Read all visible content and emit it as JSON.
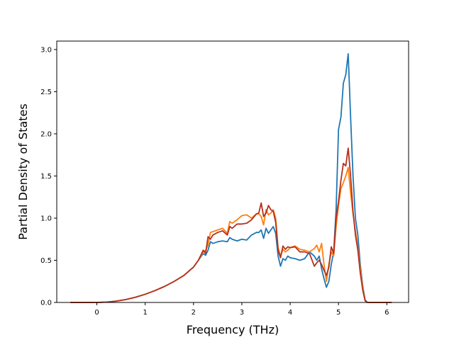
{
  "chart_data": {
    "type": "line",
    "title": "",
    "xlabel": "Frequency (THz)",
    "ylabel": "Partial Density of States",
    "xlim": [
      -0.83,
      6.45
    ],
    "ylim": [
      0.0,
      3.1
    ],
    "xticks": [
      0,
      1,
      2,
      3,
      4,
      5,
      6
    ],
    "xtick_labels": [
      "0",
      "1",
      "2",
      "3",
      "4",
      "5",
      "6"
    ],
    "yticks": [
      0.0,
      0.5,
      1.0,
      1.5,
      2.0,
      2.5,
      3.0
    ],
    "ytick_labels": [
      "0.0",
      "0.5",
      "1.0",
      "1.5",
      "2.0",
      "2.5",
      "3.0"
    ],
    "grid": false,
    "legend": "none",
    "series": [
      {
        "color": "#1f77b4",
        "x": [
          -0.55,
          0.0,
          0.2,
          0.4,
          0.6,
          0.8,
          1.0,
          1.2,
          1.4,
          1.6,
          1.8,
          2.0,
          2.1,
          2.2,
          2.25,
          2.3,
          2.35,
          2.4,
          2.5,
          2.6,
          2.7,
          2.75,
          2.8,
          2.9,
          3.0,
          3.1,
          3.2,
          3.3,
          3.35,
          3.4,
          3.45,
          3.5,
          3.55,
          3.6,
          3.65,
          3.7,
          3.75,
          3.8,
          3.85,
          3.9,
          3.95,
          4.0,
          4.1,
          4.2,
          4.3,
          4.4,
          4.5,
          4.55,
          4.6,
          4.65,
          4.7,
          4.75,
          4.8,
          4.85,
          4.9,
          4.95,
          5.0,
          5.05,
          5.1,
          5.15,
          5.2,
          5.25,
          5.3,
          5.35,
          5.4,
          5.45,
          5.5,
          5.55,
          5.6,
          5.8,
          6.1
        ],
        "values": [
          0.0,
          0.0,
          0.004,
          0.016,
          0.035,
          0.062,
          0.097,
          0.14,
          0.19,
          0.25,
          0.32,
          0.42,
          0.5,
          0.58,
          0.56,
          0.62,
          0.72,
          0.7,
          0.72,
          0.73,
          0.72,
          0.77,
          0.75,
          0.73,
          0.75,
          0.74,
          0.8,
          0.83,
          0.83,
          0.86,
          0.76,
          0.88,
          0.82,
          0.86,
          0.9,
          0.82,
          0.55,
          0.43,
          0.52,
          0.5,
          0.55,
          0.53,
          0.52,
          0.5,
          0.52,
          0.6,
          0.55,
          0.5,
          0.55,
          0.4,
          0.28,
          0.18,
          0.25,
          0.45,
          0.6,
          1.1,
          2.05,
          2.2,
          2.6,
          2.7,
          2.95,
          2.2,
          1.5,
          1.0,
          0.8,
          0.45,
          0.2,
          0.03,
          0.0,
          0.0,
          0.0
        ]
      },
      {
        "color": "#ff7f0e",
        "x": [
          -0.55,
          0.0,
          0.2,
          0.4,
          0.6,
          0.8,
          1.0,
          1.2,
          1.4,
          1.6,
          1.8,
          2.0,
          2.1,
          2.2,
          2.25,
          2.3,
          2.35,
          2.4,
          2.5,
          2.6,
          2.7,
          2.75,
          2.8,
          2.9,
          3.0,
          3.1,
          3.2,
          3.3,
          3.35,
          3.4,
          3.45,
          3.5,
          3.55,
          3.6,
          3.65,
          3.7,
          3.75,
          3.8,
          3.85,
          3.9,
          3.95,
          4.0,
          4.1,
          4.2,
          4.3,
          4.4,
          4.5,
          4.55,
          4.6,
          4.65,
          4.7,
          4.75,
          4.8,
          4.85,
          4.9,
          4.95,
          5.0,
          5.05,
          5.1,
          5.15,
          5.2,
          5.25,
          5.3,
          5.35,
          5.4,
          5.45,
          5.5,
          5.55,
          5.6,
          5.8,
          6.1
        ],
        "values": [
          0.0,
          0.0,
          0.004,
          0.016,
          0.035,
          0.062,
          0.097,
          0.14,
          0.19,
          0.25,
          0.32,
          0.42,
          0.5,
          0.6,
          0.62,
          0.68,
          0.83,
          0.84,
          0.86,
          0.88,
          0.82,
          0.96,
          0.94,
          0.98,
          1.03,
          1.04,
          1.0,
          1.05,
          1.05,
          1.02,
          0.92,
          1.1,
          1.04,
          1.06,
          1.1,
          1.0,
          0.65,
          0.55,
          0.63,
          0.6,
          0.62,
          0.65,
          0.67,
          0.63,
          0.62,
          0.6,
          0.64,
          0.68,
          0.6,
          0.7,
          0.45,
          0.25,
          0.45,
          0.6,
          0.55,
          0.9,
          1.15,
          1.35,
          1.42,
          1.5,
          1.6,
          1.3,
          1.05,
          0.85,
          0.65,
          0.4,
          0.18,
          0.02,
          0.0,
          0.0,
          0.0
        ]
      },
      {
        "color": "#b5301f",
        "x": [
          -0.55,
          0.0,
          0.2,
          0.4,
          0.6,
          0.8,
          1.0,
          1.2,
          1.4,
          1.6,
          1.8,
          2.0,
          2.1,
          2.2,
          2.25,
          2.3,
          2.35,
          2.4,
          2.5,
          2.6,
          2.7,
          2.75,
          2.8,
          2.9,
          3.0,
          3.1,
          3.2,
          3.3,
          3.35,
          3.4,
          3.45,
          3.5,
          3.55,
          3.6,
          3.65,
          3.7,
          3.75,
          3.8,
          3.85,
          3.9,
          3.95,
          4.0,
          4.1,
          4.2,
          4.3,
          4.4,
          4.5,
          4.55,
          4.6,
          4.65,
          4.7,
          4.75,
          4.8,
          4.85,
          4.9,
          4.95,
          5.0,
          5.05,
          5.1,
          5.15,
          5.2,
          5.25,
          5.3,
          5.35,
          5.4,
          5.45,
          5.5,
          5.55,
          5.6,
          5.8,
          6.1
        ],
        "values": [
          0.0,
          0.0,
          0.004,
          0.016,
          0.035,
          0.062,
          0.097,
          0.14,
          0.19,
          0.25,
          0.32,
          0.42,
          0.5,
          0.62,
          0.58,
          0.78,
          0.75,
          0.8,
          0.83,
          0.85,
          0.8,
          0.9,
          0.88,
          0.93,
          0.93,
          0.94,
          0.98,
          1.05,
          1.06,
          1.18,
          1.02,
          1.06,
          1.15,
          1.1,
          1.08,
          0.95,
          0.62,
          0.53,
          0.67,
          0.63,
          0.66,
          0.65,
          0.66,
          0.6,
          0.6,
          0.58,
          0.43,
          0.47,
          0.5,
          0.45,
          0.38,
          0.32,
          0.42,
          0.66,
          0.58,
          1.0,
          1.2,
          1.45,
          1.65,
          1.62,
          1.83,
          1.5,
          1.08,
          0.8,
          0.62,
          0.35,
          0.15,
          0.02,
          0.0,
          0.0,
          0.0
        ]
      }
    ]
  }
}
